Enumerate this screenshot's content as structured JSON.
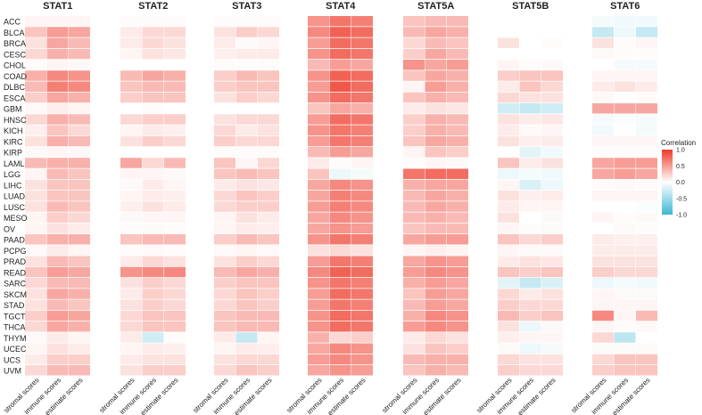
{
  "chart_data": {
    "type": "heatmap",
    "title": "",
    "panels": [
      "STAT1",
      "STAT2",
      "STAT3",
      "STAT4",
      "STAT5A",
      "STAT5B",
      "STAT6"
    ],
    "rows": [
      "ACC",
      "BLCA",
      "BRCA",
      "CESC",
      "CHOL",
      "COAD",
      "DLBC",
      "ESCA",
      "GBM",
      "HNSC",
      "KICH",
      "KIRC",
      "KIRP",
      "LAML",
      "LGG",
      "LIHC",
      "LUAD",
      "LUSC",
      "MESO",
      "OV",
      "PAAD",
      "PCPG",
      "PRAD",
      "READ",
      "SARC",
      "SKCM",
      "STAD",
      "TGCT",
      "THCA",
      "THYM",
      "UCEC",
      "UCS",
      "UVM"
    ],
    "columns": [
      "stromal scores",
      "immune scores",
      "estimate scores"
    ],
    "color_scale": {
      "min": -1.0,
      "max": 1.0,
      "low_color": "#3fb7d3",
      "mid_color": "#ffffff",
      "high_color": "#ee3b2b"
    },
    "legend": {
      "title": "Correlation",
      "ticks": [
        "1.0",
        "0.5",
        "0.0",
        "-0.5",
        "-1.0"
      ],
      "tick_values": [
        1.0,
        0.5,
        0.0,
        -0.5,
        -1.0
      ],
      "position": "right"
    },
    "values": {
      "STAT1": [
        [
          0.05,
          0.05,
          0.05
        ],
        [
          0.3,
          0.5,
          0.45
        ],
        [
          0.15,
          0.45,
          0.35
        ],
        [
          0.2,
          0.4,
          0.35
        ],
        [
          0.02,
          0.05,
          0.03
        ],
        [
          0.4,
          0.6,
          0.55
        ],
        [
          0.35,
          0.65,
          0.6
        ],
        [
          0.25,
          0.45,
          0.4
        ],
        [
          0.03,
          0.08,
          0.05
        ],
        [
          0.2,
          0.4,
          0.35
        ],
        [
          0.08,
          0.3,
          0.2
        ],
        [
          0.15,
          0.4,
          0.35
        ],
        [
          0.03,
          0.05,
          0.04
        ],
        [
          0.35,
          0.4,
          0.4
        ],
        [
          0.05,
          0.35,
          0.3
        ],
        [
          0.15,
          0.3,
          0.3
        ],
        [
          0.15,
          0.3,
          0.3
        ],
        [
          0.15,
          0.35,
          0.3
        ],
        [
          0.05,
          0.25,
          0.2
        ],
        [
          0.05,
          0.15,
          0.1
        ],
        [
          0.3,
          0.4,
          0.4
        ],
        [
          0.03,
          0.1,
          0.05
        ],
        [
          0.15,
          0.35,
          0.3
        ],
        [
          0.3,
          0.5,
          0.45
        ],
        [
          0.2,
          0.35,
          0.35
        ],
        [
          0.15,
          0.45,
          0.4
        ],
        [
          0.15,
          0.35,
          0.3
        ],
        [
          0.25,
          0.5,
          0.45
        ],
        [
          0.2,
          0.45,
          0.4
        ],
        [
          0.03,
          0.1,
          0.05
        ],
        [
          0.05,
          0.15,
          0.1
        ],
        [
          0.1,
          0.25,
          0.25
        ],
        [
          0.2,
          0.35,
          0.35
        ]
      ],
      "STAT2": [
        [
          0.02,
          0.02,
          0.02
        ],
        [
          0.1,
          0.2,
          0.2
        ],
        [
          0.1,
          0.2,
          0.15
        ],
        [
          0.05,
          0.15,
          0.12
        ],
        [
          0.0,
          0.0,
          0.0
        ],
        [
          0.35,
          0.45,
          0.4
        ],
        [
          0.3,
          0.35,
          0.35
        ],
        [
          0.25,
          0.3,
          0.3
        ],
        [
          0.0,
          0.02,
          0.0
        ],
        [
          0.2,
          0.25,
          0.25
        ],
        [
          0.05,
          0.1,
          0.08
        ],
        [
          0.15,
          0.25,
          0.2
        ],
        [
          0.0,
          0.0,
          0.0
        ],
        [
          0.45,
          0.2,
          0.35
        ],
        [
          0.05,
          0.05,
          0.03
        ],
        [
          0.03,
          0.1,
          0.05
        ],
        [
          0.05,
          0.1,
          0.08
        ],
        [
          0.08,
          0.15,
          0.1
        ],
        [
          0.03,
          0.05,
          0.05
        ],
        [
          0.02,
          0.03,
          0.02
        ],
        [
          0.3,
          0.35,
          0.35
        ],
        [
          0.02,
          0.03,
          0.02
        ],
        [
          0.1,
          0.2,
          0.15
        ],
        [
          0.55,
          0.6,
          0.6
        ],
        [
          0.15,
          0.25,
          0.2
        ],
        [
          0.1,
          0.25,
          0.2
        ],
        [
          0.15,
          0.25,
          0.2
        ],
        [
          0.2,
          0.3,
          0.3
        ],
        [
          0.2,
          0.3,
          0.3
        ],
        [
          0.1,
          -0.25,
          0.02
        ],
        [
          0.05,
          0.1,
          0.08
        ],
        [
          0.1,
          0.15,
          0.15
        ],
        [
          0.15,
          0.25,
          0.25
        ]
      ],
      "STAT3": [
        [
          0.02,
          0.02,
          0.02
        ],
        [
          0.15,
          0.25,
          0.2
        ],
        [
          0.1,
          0.03,
          0.05
        ],
        [
          0.08,
          0.1,
          0.1
        ],
        [
          0.02,
          0.02,
          0.02
        ],
        [
          0.25,
          0.35,
          0.3
        ],
        [
          0.25,
          0.3,
          0.3
        ],
        [
          0.15,
          0.25,
          0.2
        ],
        [
          0.0,
          0.0,
          0.0
        ],
        [
          0.15,
          0.2,
          0.2
        ],
        [
          0.2,
          0.1,
          0.15
        ],
        [
          0.25,
          0.2,
          0.2
        ],
        [
          0.02,
          0.02,
          0.02
        ],
        [
          0.3,
          0.05,
          0.2
        ],
        [
          0.3,
          0.35,
          0.3
        ],
        [
          0.1,
          0.15,
          0.12
        ],
        [
          0.2,
          0.3,
          0.25
        ],
        [
          0.2,
          0.25,
          0.25
        ],
        [
          0.05,
          0.15,
          0.1
        ],
        [
          0.05,
          0.1,
          0.08
        ],
        [
          0.25,
          0.35,
          0.3
        ],
        [
          0.03,
          0.05,
          0.03
        ],
        [
          0.15,
          0.25,
          0.2
        ],
        [
          0.35,
          0.45,
          0.4
        ],
        [
          0.25,
          0.3,
          0.3
        ],
        [
          0.2,
          0.3,
          0.25
        ],
        [
          0.2,
          0.3,
          0.25
        ],
        [
          0.3,
          0.35,
          0.35
        ],
        [
          0.3,
          0.35,
          0.35
        ],
        [
          0.1,
          -0.3,
          0.05
        ],
        [
          0.05,
          0.1,
          0.08
        ],
        [
          0.15,
          0.2,
          0.2
        ],
        [
          0.2,
          0.3,
          0.25
        ]
      ],
      "STAT4": [
        [
          0.55,
          0.7,
          0.65
        ],
        [
          0.6,
          0.8,
          0.75
        ],
        [
          0.5,
          0.75,
          0.7
        ],
        [
          0.55,
          0.75,
          0.7
        ],
        [
          0.35,
          0.5,
          0.45
        ],
        [
          0.55,
          0.8,
          0.75
        ],
        [
          0.5,
          0.85,
          0.75
        ],
        [
          0.55,
          0.75,
          0.7
        ],
        [
          0.3,
          0.45,
          0.4
        ],
        [
          0.5,
          0.75,
          0.7
        ],
        [
          0.55,
          0.7,
          0.65
        ],
        [
          0.5,
          0.7,
          0.65
        ],
        [
          0.35,
          0.5,
          0.45
        ],
        [
          0.1,
          0.02,
          0.05
        ],
        [
          0.3,
          -0.1,
          -0.05
        ],
        [
          0.45,
          0.6,
          0.55
        ],
        [
          0.45,
          0.65,
          0.6
        ],
        [
          0.5,
          0.65,
          0.6
        ],
        [
          0.45,
          0.6,
          0.55
        ],
        [
          0.45,
          0.55,
          0.5
        ],
        [
          0.55,
          0.7,
          0.65
        ],
        [
          0.15,
          0.2,
          0.15
        ],
        [
          0.5,
          0.7,
          0.65
        ],
        [
          0.6,
          0.8,
          0.75
        ],
        [
          0.55,
          0.7,
          0.65
        ],
        [
          0.5,
          0.75,
          0.7
        ],
        [
          0.5,
          0.7,
          0.65
        ],
        [
          0.55,
          0.75,
          0.7
        ],
        [
          0.55,
          0.75,
          0.7
        ],
        [
          0.4,
          0.2,
          0.25
        ],
        [
          0.45,
          0.6,
          0.55
        ],
        [
          0.5,
          0.6,
          0.55
        ],
        [
          0.45,
          0.55,
          0.5
        ]
      ],
      "STAT5A": [
        [
          0.3,
          0.35,
          0.35
        ],
        [
          0.35,
          0.45,
          0.4
        ],
        [
          0.2,
          0.35,
          0.3
        ],
        [
          0.25,
          0.45,
          0.35
        ],
        [
          0.55,
          0.45,
          0.5
        ],
        [
          0.3,
          0.45,
          0.4
        ],
        [
          0.05,
          0.5,
          0.4
        ],
        [
          0.3,
          0.4,
          0.35
        ],
        [
          0.1,
          0.15,
          0.12
        ],
        [
          0.25,
          0.4,
          0.35
        ],
        [
          0.25,
          0.4,
          0.35
        ],
        [
          0.3,
          0.45,
          0.4
        ],
        [
          0.05,
          0.3,
          0.25
        ],
        [
          0.02,
          0.05,
          0.03
        ],
        [
          0.7,
          0.75,
          0.75
        ],
        [
          0.4,
          0.45,
          0.45
        ],
        [
          0.35,
          0.45,
          0.4
        ],
        [
          0.35,
          0.45,
          0.4
        ],
        [
          0.35,
          0.4,
          0.35
        ],
        [
          0.3,
          0.35,
          0.35
        ],
        [
          0.45,
          0.5,
          0.5
        ],
        [
          0.05,
          0.08,
          0.05
        ],
        [
          0.45,
          0.55,
          0.5
        ],
        [
          0.5,
          0.6,
          0.55
        ],
        [
          0.4,
          0.5,
          0.45
        ],
        [
          0.3,
          0.5,
          0.45
        ],
        [
          0.35,
          0.5,
          0.45
        ],
        [
          0.4,
          0.6,
          0.55
        ],
        [
          0.5,
          0.6,
          0.55
        ],
        [
          0.1,
          0.2,
          0.15
        ],
        [
          0.15,
          0.3,
          0.25
        ],
        [
          0.35,
          0.4,
          0.4
        ],
        [
          0.3,
          0.4,
          0.35
        ]
      ],
      "STAT5B": [
        [
          0.0,
          0.0,
          0.0
        ],
        [
          0.0,
          0.0,
          0.0
        ],
        [
          0.15,
          0.0,
          0.02
        ],
        [
          0.0,
          0.0,
          0.0
        ],
        [
          0.05,
          0.02,
          0.03
        ],
        [
          0.25,
          0.3,
          0.3
        ],
        [
          0.1,
          0.3,
          0.2
        ],
        [
          0.2,
          0.15,
          0.15
        ],
        [
          -0.25,
          -0.3,
          -0.25
        ],
        [
          0.15,
          0.1,
          0.12
        ],
        [
          0.1,
          0.03,
          0.05
        ],
        [
          0.15,
          0.08,
          0.1
        ],
        [
          0.0,
          -0.15,
          -0.08
        ],
        [
          0.3,
          0.1,
          0.15
        ],
        [
          -0.1,
          -0.05,
          -0.08
        ],
        [
          0.05,
          -0.2,
          -0.1
        ],
        [
          0.15,
          0.08,
          0.1
        ],
        [
          0.1,
          0.05,
          0.05
        ],
        [
          0.15,
          0.0,
          0.03
        ],
        [
          0.05,
          0.02,
          0.03
        ],
        [
          0.3,
          0.2,
          0.25
        ],
        [
          0.05,
          0.03,
          0.03
        ],
        [
          0.1,
          0.15,
          0.12
        ],
        [
          0.3,
          0.25,
          0.3
        ],
        [
          -0.15,
          -0.3,
          -0.2
        ],
        [
          0.2,
          0.1,
          0.15
        ],
        [
          0.25,
          0.2,
          0.2
        ],
        [
          0.35,
          0.25,
          0.3
        ],
        [
          0.15,
          -0.1,
          0.03
        ],
        [
          0.08,
          0.05,
          0.05
        ],
        [
          0.03,
          -0.1,
          -0.05
        ],
        [
          0.2,
          0.15,
          0.15
        ],
        [
          0.25,
          0.2,
          0.2
        ]
      ],
      "STAT6": [
        [
          -0.05,
          -0.08,
          -0.08
        ],
        [
          -0.3,
          -0.1,
          -0.3
        ],
        [
          0.15,
          0.02,
          0.05
        ],
        [
          0.03,
          0.02,
          0.02
        ],
        [
          0.0,
          -0.05,
          -0.05
        ],
        [
          0.05,
          0.05,
          0.05
        ],
        [
          0.1,
          0.15,
          0.1
        ],
        [
          0.03,
          0.0,
          0.02
        ],
        [
          0.45,
          0.45,
          0.45
        ],
        [
          -0.05,
          -0.03,
          -0.05
        ],
        [
          -0.08,
          0.0,
          -0.05
        ],
        [
          0.05,
          0.05,
          0.05
        ],
        [
          0.02,
          0.02,
          0.02
        ],
        [
          0.45,
          0.5,
          0.5
        ],
        [
          0.45,
          0.5,
          0.45
        ],
        [
          0.02,
          0.03,
          0.02
        ],
        [
          0.05,
          0.05,
          0.05
        ],
        [
          0.0,
          0.0,
          -0.03
        ],
        [
          0.05,
          0.02,
          0.03
        ],
        [
          0.0,
          0.03,
          0.02
        ],
        [
          0.1,
          0.08,
          0.08
        ],
        [
          0.1,
          0.1,
          0.1
        ],
        [
          0.15,
          0.15,
          0.15
        ],
        [
          0.25,
          0.2,
          0.2
        ],
        [
          -0.1,
          -0.05,
          -0.08
        ],
        [
          0.05,
          0.03,
          0.03
        ],
        [
          0.05,
          0.05,
          0.05
        ],
        [
          0.6,
          0.05,
          0.35
        ],
        [
          0.05,
          0.02,
          0.03
        ],
        [
          0.2,
          -0.35,
          0.0
        ],
        [
          0.03,
          0.03,
          0.03
        ],
        [
          0.2,
          0.3,
          0.3
        ],
        [
          0.25,
          0.3,
          0.3
        ]
      ]
    }
  }
}
